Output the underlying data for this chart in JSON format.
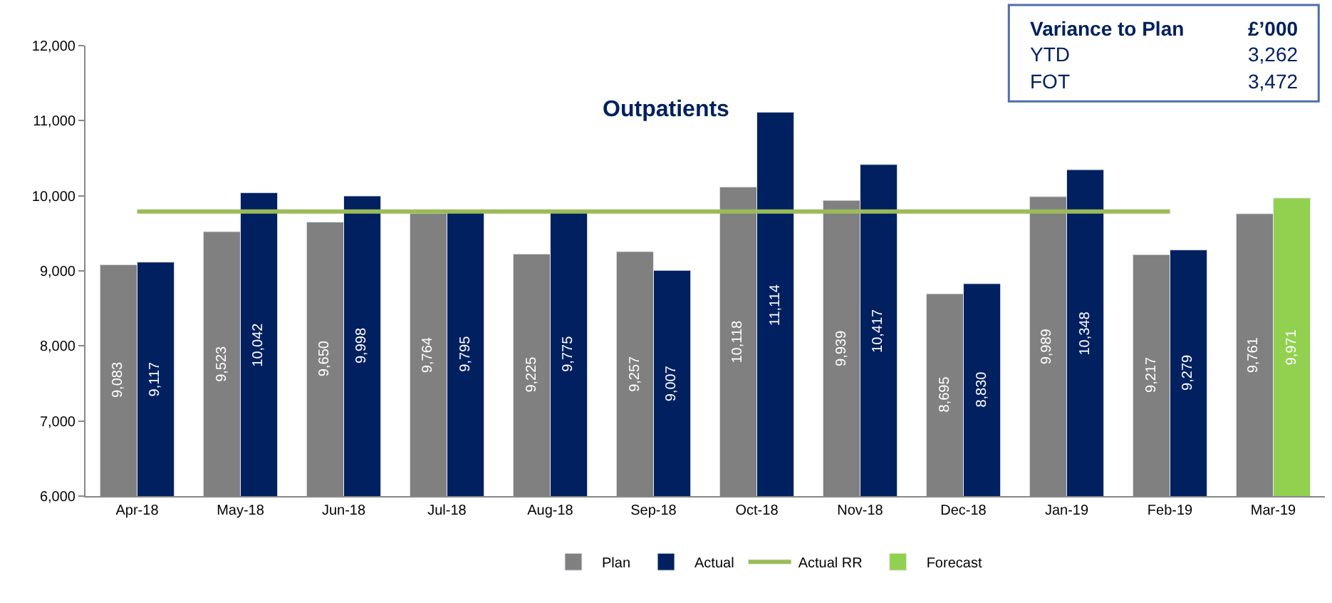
{
  "chart_data": {
    "type": "bar",
    "title": "Outpatients",
    "categories": [
      "Apr-18",
      "May-18",
      "Jun-18",
      "Jul-18",
      "Aug-18",
      "Sep-18",
      "Oct-18",
      "Nov-18",
      "Dec-18",
      "Jan-19",
      "Feb-19",
      "Mar-19"
    ],
    "series": [
      {
        "name": "Plan",
        "color": "#808080",
        "values": [
          9083,
          9523,
          9650,
          9764,
          9225,
          9257,
          10118,
          9939,
          8695,
          9989,
          9217,
          9761
        ],
        "value_labels": [
          "9,083",
          "9,523",
          "9,650",
          "9,764",
          "9,225",
          "9,257",
          "10,118",
          "9,939",
          "8,695",
          "9,989",
          "9,217",
          "9,761"
        ]
      },
      {
        "name": "Actual",
        "color": "#002060",
        "values": [
          9117,
          10042,
          9998,
          9795,
          9775,
          9007,
          11114,
          10417,
          8830,
          10348,
          9279,
          null
        ],
        "value_labels": [
          "9,117",
          "10,042",
          "9,998",
          "9,795",
          "9,775",
          "9,007",
          "11,114",
          "10,417",
          "8,830",
          "10,348",
          "9,279",
          null
        ]
      },
      {
        "name": "Actual RR",
        "type": "line",
        "color": "#9bbb59",
        "values": [
          9790,
          9790,
          9790,
          9790,
          9790,
          9790,
          9790,
          9790,
          9790,
          9790,
          9790,
          null
        ]
      },
      {
        "name": "Forecast",
        "color": "#92d050",
        "values": [
          null,
          null,
          null,
          null,
          null,
          null,
          null,
          null,
          null,
          null,
          null,
          9971
        ],
        "value_labels": [
          null,
          null,
          null,
          null,
          null,
          null,
          null,
          null,
          null,
          null,
          null,
          "9,971"
        ]
      }
    ],
    "ylim": [
      6000,
      12000
    ],
    "yticks": [
      {
        "value": 6000,
        "label": "6,000"
      },
      {
        "value": 7000,
        "label": "7,000"
      },
      {
        "value": 8000,
        "label": "8,000"
      },
      {
        "value": 9000,
        "label": "9,000"
      },
      {
        "value": 10000,
        "label": "10,000"
      },
      {
        "value": 11000,
        "label": "11,000"
      },
      {
        "value": 12000,
        "label": "12,000"
      }
    ],
    "legend": "bottom",
    "annotations": [
      "Variance to Plan",
      "£’000",
      "YTD",
      "3,262",
      "FOT",
      "3,472"
    ]
  }
}
